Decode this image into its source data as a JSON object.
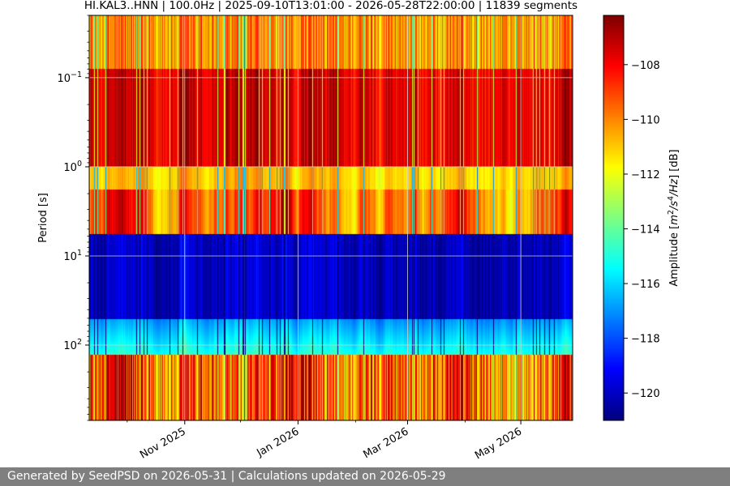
{
  "chart_data": {
    "type": "heatmap",
    "title": "HI.KAL3..HNN | 100.0Hz | 2025-09-10T13:01:00 - 2026-05-28T22:00:00 | 11839 segments",
    "xlabel": "",
    "ylabel": "Period [s]",
    "x_range": [
      "2025-09-10T13:01:00",
      "2026-05-28T22:00:00"
    ],
    "x_ticks": [
      "2025-11-01",
      "2026-01-01",
      "2026-03-01",
      "2026-05-01"
    ],
    "x_tick_labels": [
      "Nov 2025",
      "Jan 2026",
      "Mar 2026",
      "May 2026"
    ],
    "y_scale": "log",
    "y_range": [
      0.02,
      700
    ],
    "y_inverted": true,
    "y_ticks": [
      0.1,
      1,
      10,
      100
    ],
    "y_tick_labels": [
      {
        "base": "10",
        "exp": "−1"
      },
      {
        "base": "10",
        "exp": "0"
      },
      {
        "base": "10",
        "exp": "1"
      },
      {
        "base": "10",
        "exp": "2"
      }
    ],
    "grid": true,
    "colormap": "jet",
    "colorbar": {
      "label": "Amplitude [m²/s⁴/Hz] [dB]",
      "label_parts": [
        "Amplitude [",
        "m",
        "2",
        "/s",
        "4",
        "/Hz",
        "] [dB]"
      ],
      "min": -121,
      "max": -106.2,
      "ticks": [
        -108,
        -110,
        -112,
        -114,
        -116,
        -118,
        -120
      ],
      "tick_labels": [
        "−108",
        "−110",
        "−112",
        "−114",
        "−116",
        "−118",
        "−120"
      ]
    }
  },
  "footer": {
    "text": "Generated by SeedPSD on 2026-05-31 | Calculations updated on 2026-05-29"
  }
}
